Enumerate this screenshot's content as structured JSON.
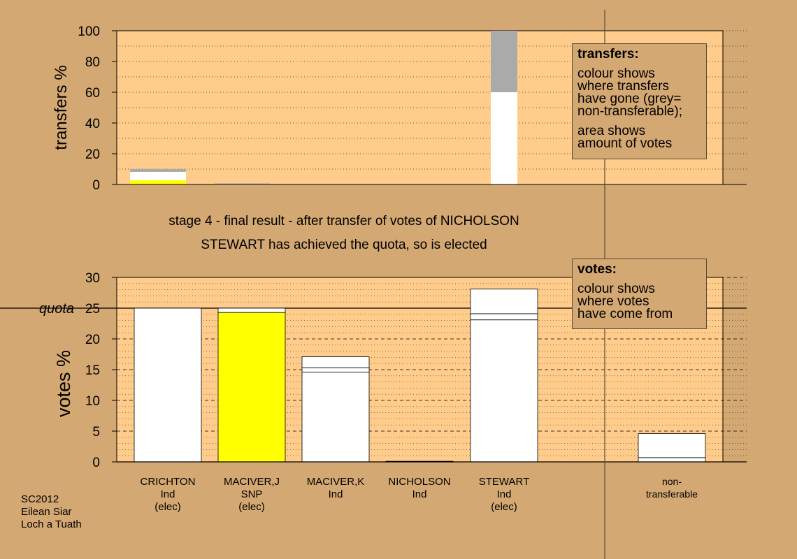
{
  "chart_data": [
    {
      "type": "bar",
      "ylabel": "transfers %",
      "ylim": [
        0,
        100
      ],
      "yticks": [
        0,
        20,
        40,
        60,
        80,
        100
      ],
      "grid": "dotted",
      "categories": [
        "CRICHTON",
        "MACIVER,J",
        "MACIVER,K",
        "NICHOLSON",
        "STEWART",
        "non-transferable"
      ],
      "stacks": [
        [
          {
            "value": 2.7,
            "color": "#ffff00"
          },
          {
            "value": 5.5,
            "color": "#ffffff"
          },
          {
            "value": 1.8,
            "color": "#aaaaaa"
          }
        ],
        [
          {
            "value": 0.4,
            "color": "#ffffff"
          },
          {
            "value": 0.3,
            "color": "#aaaaaa"
          }
        ],
        [],
        [],
        [
          {
            "value": 60,
            "color": "#ffffff"
          },
          {
            "value": 40,
            "color": "#aaaaaa"
          }
        ],
        []
      ],
      "legend": {
        "title": "transfers:",
        "lines": [
          "colour shows\nwhere transfers\nhave gone (grey=\nnon-transferable);",
          "area shows\namount of votes"
        ]
      }
    },
    {
      "type": "bar",
      "ylabel": "votes %",
      "ylim": [
        0,
        30
      ],
      "yticks": [
        0,
        5,
        10,
        15,
        20,
        25,
        30
      ],
      "grid": "dashed",
      "quota": {
        "value": 25,
        "label": "quota"
      },
      "categories": [
        {
          "name": "CRICHTON",
          "party": "Ind",
          "note": "(elec)"
        },
        {
          "name": "MACIVER,J",
          "party": "SNP",
          "note": "(elec)"
        },
        {
          "name": "MACIVER,K",
          "party": "Ind",
          "note": ""
        },
        {
          "name": "NICHOLSON",
          "party": "Ind",
          "note": ""
        },
        {
          "name": "STEWART",
          "party": "Ind",
          "note": "(elec)"
        },
        {
          "name": "non-",
          "party": "transferable",
          "note": ""
        }
      ],
      "stacks": [
        [
          {
            "value": 25.0,
            "color": "#ffffff"
          }
        ],
        [
          {
            "value": 24.3,
            "color": "#ffff00"
          },
          {
            "value": 0.7,
            "color": "#ffffff"
          }
        ],
        [
          {
            "value": 14.6,
            "color": "#ffffff"
          },
          {
            "value": 0.7,
            "color": "#ffffff"
          },
          {
            "value": 1.8,
            "color": "#ffffff"
          }
        ],
        [
          {
            "value": 0.1,
            "color": "#ffffff"
          }
        ],
        [
          {
            "value": 23.1,
            "color": "#ffffff"
          },
          {
            "value": 1.0,
            "color": "#ffffff"
          },
          {
            "value": 4.0,
            "color": "#ffffff"
          }
        ],
        [
          {
            "value": 0.7,
            "color": "#ffffff"
          },
          {
            "value": 3.9,
            "color": "#ffffff"
          }
        ]
      ],
      "legend": {
        "title": "votes:",
        "lines": [
          "colour shows\nwhere votes\nhave come from"
        ]
      }
    }
  ],
  "caption": {
    "line1": "stage 4 - final result - after transfer of votes of NICHOLSON",
    "line2": "STEWART has achieved the quota, so is elected"
  },
  "footer": {
    "line1": "SC2012",
    "line2": "Eilean Siar",
    "line3": "Loch a Tuath"
  },
  "colors": {
    "background": "#d4a872",
    "plot": "#ffcc8c",
    "grey": "#aaaaaa",
    "yellow": "#ffff00"
  }
}
